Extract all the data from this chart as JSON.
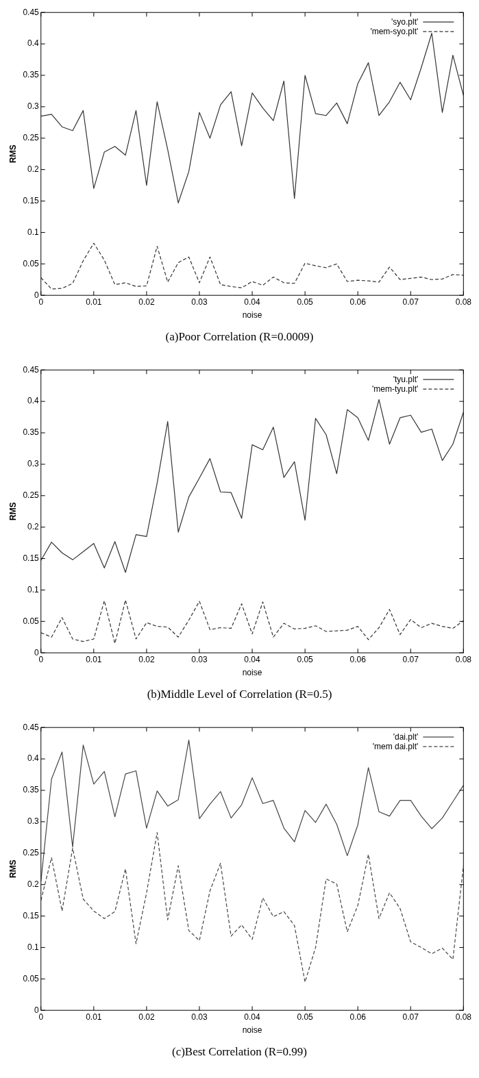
{
  "chart_data": [
    {
      "type": "line",
      "title": "(a)Poor Correlation (R=0.0009)",
      "xlabel": "noise",
      "ylabel": "RMS",
      "x": [
        0,
        0.002,
        0.004,
        0.006,
        0.008,
        0.01,
        0.012,
        0.014,
        0.016,
        0.018,
        0.02,
        0.022,
        0.024,
        0.026,
        0.028,
        0.03,
        0.032,
        0.034,
        0.036,
        0.038,
        0.04,
        0.042,
        0.044,
        0.046,
        0.048,
        0.05,
        0.052,
        0.054,
        0.056,
        0.058,
        0.06,
        0.062,
        0.064,
        0.066,
        0.068,
        0.07,
        0.072,
        0.074,
        0.076,
        0.078,
        0.08
      ],
      "series": [
        {
          "name": "'syo.plt'",
          "color": "#333333",
          "line_style": "solid",
          "values": [
            0.285,
            0.288,
            0.268,
            0.262,
            0.294,
            0.17,
            0.228,
            0.237,
            0.223,
            0.294,
            0.175,
            0.308,
            0.232,
            0.147,
            0.197,
            0.291,
            0.25,
            0.303,
            0.324,
            0.238,
            0.322,
            0.298,
            0.278,
            0.341,
            0.154,
            0.35,
            0.289,
            0.286,
            0.306,
            0.273,
            0.337,
            0.37,
            0.286,
            0.308,
            0.339,
            0.311,
            0.362,
            0.417,
            0.291,
            0.382,
            0.318
          ]
        },
        {
          "name": "'mem-syo.plt'",
          "color": "#333333",
          "line_style": "dashed",
          "values": [
            0.028,
            0.01,
            0.011,
            0.019,
            0.055,
            0.083,
            0.056,
            0.017,
            0.02,
            0.014,
            0.015,
            0.078,
            0.021,
            0.052,
            0.061,
            0.02,
            0.061,
            0.017,
            0.014,
            0.012,
            0.022,
            0.016,
            0.029,
            0.02,
            0.019,
            0.051,
            0.047,
            0.044,
            0.05,
            0.022,
            0.024,
            0.023,
            0.021,
            0.045,
            0.025,
            0.027,
            0.029,
            0.025,
            0.026,
            0.033,
            0.032
          ]
        }
      ],
      "xlim": [
        0,
        0.08
      ],
      "xticks": [
        0,
        0.01,
        0.02,
        0.03,
        0.04,
        0.05,
        0.06,
        0.07,
        0.08
      ],
      "ylim": [
        0,
        0.45
      ],
      "yticks": [
        0,
        0.05,
        0.1,
        0.15,
        0.2,
        0.25,
        0.3,
        0.35,
        0.4,
        0.45
      ],
      "legend": "top right"
    },
    {
      "type": "line",
      "title": "(b)Middle Level of Correlation (R=0.5)",
      "xlabel": "noise",
      "ylabel": "RMS",
      "x": [
        0,
        0.002,
        0.004,
        0.006,
        0.008,
        0.01,
        0.012,
        0.014,
        0.016,
        0.018,
        0.02,
        0.022,
        0.024,
        0.026,
        0.028,
        0.03,
        0.032,
        0.034,
        0.036,
        0.038,
        0.04,
        0.042,
        0.044,
        0.046,
        0.048,
        0.05,
        0.052,
        0.054,
        0.056,
        0.058,
        0.06,
        0.062,
        0.064,
        0.066,
        0.068,
        0.07,
        0.072,
        0.074,
        0.076,
        0.078,
        0.08
      ],
      "series": [
        {
          "name": "'tyu.plt'",
          "color": "#333333",
          "line_style": "solid",
          "values": [
            0.147,
            0.176,
            0.159,
            0.148,
            0.161,
            0.174,
            0.135,
            0.177,
            0.128,
            0.188,
            0.185,
            0.27,
            0.368,
            0.192,
            0.248,
            0.278,
            0.309,
            0.256,
            0.255,
            0.214,
            0.331,
            0.323,
            0.359,
            0.279,
            0.304,
            0.211,
            0.373,
            0.347,
            0.285,
            0.387,
            0.374,
            0.338,
            0.403,
            0.332,
            0.374,
            0.378,
            0.351,
            0.356,
            0.306,
            0.332,
            0.383
          ]
        },
        {
          "name": "'mem-tyu.plt'",
          "color": "#333333",
          "line_style": "dashed",
          "values": [
            0.032,
            0.025,
            0.056,
            0.022,
            0.018,
            0.022,
            0.083,
            0.015,
            0.084,
            0.022,
            0.048,
            0.042,
            0.041,
            0.025,
            0.052,
            0.082,
            0.037,
            0.04,
            0.039,
            0.078,
            0.03,
            0.081,
            0.025,
            0.047,
            0.038,
            0.039,
            0.043,
            0.034,
            0.035,
            0.036,
            0.042,
            0.021,
            0.04,
            0.069,
            0.029,
            0.053,
            0.04,
            0.047,
            0.042,
            0.039,
            0.051
          ]
        }
      ],
      "xlim": [
        0,
        0.08
      ],
      "xticks": [
        0,
        0.01,
        0.02,
        0.03,
        0.04,
        0.05,
        0.06,
        0.07,
        0.08
      ],
      "ylim": [
        0,
        0.45
      ],
      "yticks": [
        0,
        0.05,
        0.1,
        0.15,
        0.2,
        0.25,
        0.3,
        0.35,
        0.4,
        0.45
      ],
      "legend": "top right"
    },
    {
      "type": "line",
      "title": "(c)Best Correlation (R=0.99)",
      "xlabel": "noise",
      "ylabel": "RMS",
      "x": [
        0,
        0.002,
        0.004,
        0.006,
        0.008,
        0.01,
        0.012,
        0.014,
        0.016,
        0.018,
        0.02,
        0.022,
        0.024,
        0.026,
        0.028,
        0.03,
        0.032,
        0.034,
        0.036,
        0.038,
        0.04,
        0.042,
        0.044,
        0.046,
        0.048,
        0.05,
        0.052,
        0.054,
        0.056,
        0.058,
        0.06,
        0.062,
        0.064,
        0.066,
        0.068,
        0.07,
        0.072,
        0.074,
        0.076,
        0.078,
        0.08
      ],
      "series": [
        {
          "name": "'dai.plt'",
          "color": "#444444",
          "line_style": "solid",
          "values": [
            0.205,
            0.368,
            0.411,
            0.26,
            0.422,
            0.36,
            0.38,
            0.308,
            0.376,
            0.381,
            0.29,
            0.349,
            0.325,
            0.335,
            0.43,
            0.305,
            0.328,
            0.348,
            0.306,
            0.327,
            0.37,
            0.329,
            0.334,
            0.29,
            0.268,
            0.318,
            0.299,
            0.328,
            0.296,
            0.246,
            0.295,
            0.386,
            0.316,
            0.309,
            0.334,
            0.334,
            0.309,
            0.289,
            0.306,
            0.332,
            0.358
          ]
        },
        {
          "name": "'mem dai.plt'",
          "color": "#444444",
          "line_style": "dashed",
          "values": [
            0.175,
            0.243,
            0.158,
            0.258,
            0.177,
            0.158,
            0.146,
            0.157,
            0.225,
            0.106,
            0.187,
            0.283,
            0.144,
            0.23,
            0.127,
            0.111,
            0.19,
            0.234,
            0.118,
            0.136,
            0.113,
            0.179,
            0.149,
            0.157,
            0.135,
            0.045,
            0.1,
            0.209,
            0.201,
            0.125,
            0.167,
            0.248,
            0.146,
            0.187,
            0.162,
            0.109,
            0.1,
            0.09,
            0.099,
            0.081,
            0.23
          ]
        }
      ],
      "xlim": [
        0,
        0.08
      ],
      "xticks": [
        0,
        0.01,
        0.02,
        0.03,
        0.04,
        0.05,
        0.06,
        0.07,
        0.08
      ],
      "ylim": [
        0,
        0.45
      ],
      "yticks": [
        0,
        0.05,
        0.1,
        0.15,
        0.2,
        0.25,
        0.3,
        0.35,
        0.4,
        0.45
      ],
      "legend": "top right"
    }
  ]
}
